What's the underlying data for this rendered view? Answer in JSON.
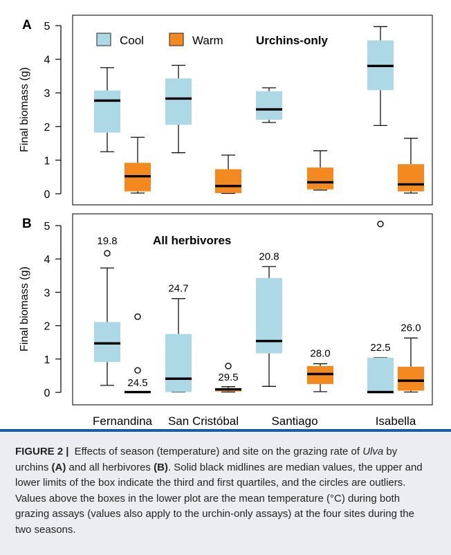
{
  "chart_data": [
    {
      "panel": "A",
      "type": "box",
      "title": "Urchins-only",
      "ylabel": "Final biomass (g)",
      "ylim": [
        0,
        5
      ],
      "yticks": [
        0,
        1,
        2,
        3,
        4,
        5
      ],
      "legend": {
        "placement": "top-left",
        "entries": [
          "Cool",
          "Warm"
        ]
      },
      "categories": [
        "Fernandina",
        "San Cristóbal",
        "Santiago",
        "Isabella"
      ],
      "series": [
        {
          "name": "Cool",
          "color": "#add8e6",
          "boxes": [
            {
              "min": 1.25,
              "q1": 1.82,
              "median": 2.77,
              "q3": 3.07,
              "max": 3.75,
              "outliers": []
            },
            {
              "min": 1.22,
              "q1": 2.05,
              "median": 2.83,
              "q3": 3.43,
              "max": 3.82,
              "outliers": []
            },
            {
              "min": 2.12,
              "q1": 2.2,
              "median": 2.51,
              "q3": 3.05,
              "max": 3.15,
              "outliers": []
            },
            {
              "min": 2.03,
              "q1": 3.08,
              "median": 3.8,
              "q3": 4.56,
              "max": 4.97,
              "outliers": []
            }
          ]
        },
        {
          "name": "Warm",
          "color": "#f48a1f",
          "boxes": [
            {
              "min": 0.02,
              "q1": 0.07,
              "median": 0.52,
              "q3": 0.92,
              "max": 1.68,
              "outliers": []
            },
            {
              "min": 0.01,
              "q1": 0.02,
              "median": 0.23,
              "q3": 0.73,
              "max": 1.15,
              "outliers": []
            },
            {
              "min": 0.11,
              "q1": 0.13,
              "median": 0.34,
              "q3": 0.78,
              "max": 1.28,
              "outliers": []
            },
            {
              "min": 0.02,
              "q1": 0.07,
              "median": 0.28,
              "q3": 0.88,
              "max": 1.65,
              "outliers": []
            }
          ]
        }
      ]
    },
    {
      "panel": "B",
      "type": "box",
      "title": "All herbivores",
      "ylabel": "Final biomass (g)",
      "ylim": [
        0,
        5
      ],
      "yticks": [
        0,
        1,
        2,
        3,
        4,
        5
      ],
      "categories": [
        "Fernandina",
        "San Cristóbal",
        "Santiago",
        "Isabella"
      ],
      "series": [
        {
          "name": "Cool",
          "color": "#add8e6",
          "boxes": [
            {
              "min": 0.21,
              "q1": 0.91,
              "median": 1.47,
              "q3": 2.11,
              "max": 3.73,
              "outliers": [
                4.17
              ],
              "label": "19.8"
            },
            {
              "min": 0.01,
              "q1": 0.01,
              "median": 0.41,
              "q3": 1.75,
              "max": 2.81,
              "outliers": [],
              "label": "24.7"
            },
            {
              "min": 0.18,
              "q1": 1.17,
              "median": 1.54,
              "q3": 3.43,
              "max": 3.77,
              "outliers": [],
              "label": "20.8"
            },
            {
              "min": 0.01,
              "q1": 0.01,
              "median": 0.01,
              "q3": 1.04,
              "max": 1.04,
              "outliers": [
                5.05
              ],
              "label": "22.5"
            }
          ]
        },
        {
          "name": "Warm",
          "color": "#f48a1f",
          "boxes": [
            {
              "min": 0.0,
              "q1": 0.0,
              "median": 0.01,
              "q3": 0.02,
              "max": 0.02,
              "outliers": [
                0.66,
                2.27
              ],
              "label": "24.5"
            },
            {
              "min": 0.01,
              "q1": 0.03,
              "median": 0.09,
              "q3": 0.13,
              "max": 0.17,
              "outliers": [
                0.79
              ],
              "label": "29.5"
            },
            {
              "min": 0.02,
              "q1": 0.25,
              "median": 0.55,
              "q3": 0.79,
              "max": 0.86,
              "outliers": [],
              "label": "28.0"
            },
            {
              "min": 0.01,
              "q1": 0.05,
              "median": 0.35,
              "q3": 0.77,
              "max": 1.63,
              "outliers": [],
              "label": "26.0"
            }
          ]
        }
      ]
    }
  ],
  "caption": {
    "label": "FIGURE 2",
    "separator": "|",
    "t1": "Effects of season (temperature) and site on the grazing rate of",
    "t2": "Ulva",
    "t3": "by urchins",
    "t4": "(A)",
    "t5": "and all herbivores",
    "t6": "(B)",
    "t7": ". Solid black midlines are median values, the upper and lower limits of the box indicate the third and first quartiles, and the circles are outliers. Values above the boxes in the lower plot are the mean temperature (°C) during both grazing assays (values also apply to the urchin-only assays) at the four sites during the two seasons."
  }
}
